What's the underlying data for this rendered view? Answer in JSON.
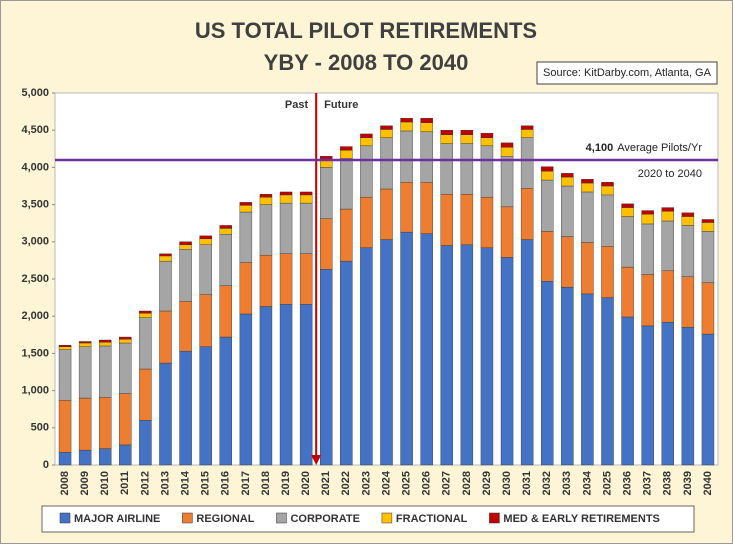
{
  "chart_data": {
    "type": "stacked_bar",
    "title": "US TOTAL PILOT RETIREMENTS",
    "subtitle": "YBY - 2008 TO 2040",
    "source": "Source: KitDarby.com, Atlanta, GA",
    "categories": [
      "2008",
      "2009",
      "2010",
      "2011",
      "2012",
      "2013",
      "2014",
      "2015",
      "2016",
      "2017",
      "2018",
      "2019",
      "2020",
      "2021",
      "2022",
      "2023",
      "2024",
      "2025",
      "2026",
      "2027",
      "2028",
      "2029",
      "2030",
      "2031",
      "2032",
      "2033",
      "2034",
      "2025",
      "2036",
      "2037",
      "2038",
      "2039",
      "2040"
    ],
    "series": [
      {
        "name": "MAJOR AIRLINE",
        "color": "#4472c4",
        "values": [
          170,
          200,
          220,
          270,
          600,
          1370,
          1530,
          1590,
          1720,
          2030,
          2130,
          2160,
          2160,
          2630,
          2740,
          2920,
          3030,
          3130,
          3110,
          2950,
          2960,
          2920,
          2790,
          3030,
          2470,
          2390,
          2300,
          2250,
          1990,
          1870,
          1920,
          1850,
          1760
        ]
      },
      {
        "name": "REGIONAL",
        "color": "#ed7d31",
        "values": [
          700,
          700,
          690,
          690,
          690,
          700,
          670,
          700,
          690,
          690,
          690,
          680,
          680,
          680,
          700,
          680,
          680,
          670,
          690,
          690,
          680,
          680,
          680,
          690,
          670,
          680,
          690,
          690,
          670,
          690,
          690,
          680,
          690
        ]
      },
      {
        "name": "CORPORATE",
        "color": "#a5a5a5",
        "values": [
          680,
          690,
          690,
          680,
          690,
          670,
          700,
          670,
          690,
          680,
          680,
          680,
          680,
          690,
          680,
          690,
          690,
          690,
          680,
          680,
          680,
          690,
          680,
          680,
          690,
          680,
          680,
          690,
          680,
          680,
          670,
          690,
          690
        ]
      },
      {
        "name": "FRACTIONAL",
        "color": "#ffc000",
        "values": [
          40,
          50,
          50,
          50,
          60,
          70,
          60,
          80,
          80,
          90,
          100,
          110,
          110,
          100,
          110,
          110,
          110,
          120,
          120,
          120,
          120,
          110,
          120,
          110,
          120,
          120,
          120,
          120,
          120,
          130,
          130,
          120,
          120
        ]
      },
      {
        "name": "MED & EARLY RETIREMENTS",
        "color": "#c00000",
        "values": [
          20,
          20,
          30,
          30,
          30,
          30,
          40,
          40,
          40,
          40,
          40,
          40,
          40,
          50,
          50,
          50,
          50,
          50,
          60,
          60,
          60,
          60,
          60,
          50,
          60,
          50,
          50,
          50,
          50,
          50,
          50,
          50,
          40
        ]
      }
    ],
    "ylim": [
      0,
      5000
    ],
    "yticks": [
      0,
      500,
      {
        "value": 1000,
        "label": "1,000"
      },
      {
        "value": 1500,
        "label": "1,500"
      },
      {
        "value": 2000,
        "label": "2,000"
      },
      {
        "value": 2500,
        "label": "2,500"
      },
      {
        "value": 3000,
        "label": "3,000"
      },
      {
        "value": 3500,
        "label": "3,500"
      },
      {
        "value": 4000,
        "label": "4,000"
      },
      {
        "value": 4500,
        "label": "4,500"
      },
      {
        "value": 5000,
        "label": "5,000"
      }
    ],
    "grid": false,
    "divider": {
      "before": "Past",
      "after": "Future",
      "color": "#c00000"
    },
    "average": {
      "value": 4100,
      "label": "4,100",
      "text": "Average Pilots/Yr",
      "period": "2020 to 2040",
      "color": "#7030a0"
    }
  }
}
